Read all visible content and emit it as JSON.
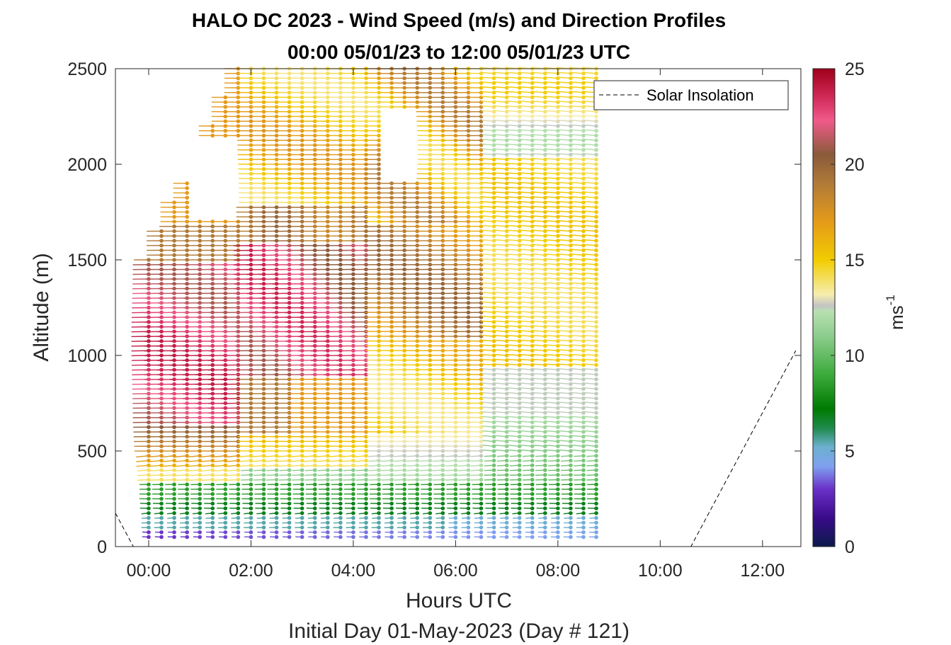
{
  "chart_data": {
    "type": "scatter",
    "title_line1": "HALO DC 2023 - Wind Speed (m/s) and Direction Profiles",
    "title_line2": "00:00 05/01/23 to 12:00 05/01/23  UTC",
    "xlabel": "Hours UTC",
    "subtitle": "Initial Day 01-May-2023 (Day # 121)",
    "ylabel": "Altitude (m)",
    "xlim": [
      -0.65,
      12.75
    ],
    "ylim": [
      0,
      2500
    ],
    "xticks": [
      0,
      2,
      4,
      6,
      8,
      10,
      12
    ],
    "xtick_labels": [
      "00:00",
      "02:00",
      "04:00",
      "06:00",
      "08:00",
      "10:00",
      "12:00"
    ],
    "yticks": [
      0,
      500,
      1000,
      1500,
      2000,
      2500
    ],
    "ytick_labels": [
      "0",
      "500",
      "1000",
      "1500",
      "2000",
      "2500"
    ],
    "colorbar": {
      "label_base": "ms",
      "label_exp": "-1",
      "range": [
        0,
        25
      ],
      "ticks": [
        0,
        5,
        10,
        15,
        20,
        25
      ],
      "tick_labels": [
        "0",
        "5",
        "10",
        "15",
        "20",
        "25"
      ],
      "stops": [
        [
          0,
          "#0b1a4a"
        ],
        [
          1.5,
          "#3a0a8a"
        ],
        [
          3,
          "#6a30c8"
        ],
        [
          4.2,
          "#7fa0ef"
        ],
        [
          5.2,
          "#6cb0d0"
        ],
        [
          6.2,
          "#1f8a4c"
        ],
        [
          7.2,
          "#007a00"
        ],
        [
          9,
          "#3cab3c"
        ],
        [
          11,
          "#8ccc8c"
        ],
        [
          12.3,
          "#b8e0b0"
        ],
        [
          12.6,
          "#c4c4c4"
        ],
        [
          13.2,
          "#f6eeae"
        ],
        [
          15,
          "#f2cc00"
        ],
        [
          17,
          "#e49a1a"
        ],
        [
          19,
          "#b07a38"
        ],
        [
          20.5,
          "#8a5a3a"
        ],
        [
          22.3,
          "#f05a8a"
        ],
        [
          23.5,
          "#d02a58"
        ],
        [
          25,
          "#a0001a"
        ]
      ]
    },
    "legend": {
      "entry": "Solar Insolation",
      "position": "top-right",
      "style": "dashed"
    },
    "solar_insolation": {
      "x": [
        -0.65,
        -0.3,
        10.6,
        12.65
      ],
      "y": [
        175,
        0,
        0,
        1025
      ]
    },
    "wind_profiles": {
      "time_start_h": 0.0,
      "time_end_h": 8.75,
      "time_step_h": 0.25,
      "levels_m": [
        50,
        2500
      ],
      "level_step_m": 25
    }
  }
}
